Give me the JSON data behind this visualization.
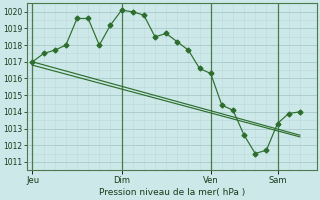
{
  "bg_color": "#cce8e8",
  "grid_color_major": "#aacaca",
  "grid_color_minor": "#bcd8d8",
  "line_color": "#2d6e2d",
  "xlabel": "Pression niveau de la mer( hPa )",
  "ylim": [
    1010.5,
    1020.5
  ],
  "yticks": [
    1011,
    1012,
    1013,
    1014,
    1015,
    1016,
    1017,
    1018,
    1019,
    1020
  ],
  "xtick_labels": [
    "Jeu",
    "Dim",
    "Ven",
    "Sam"
  ],
  "xtick_positions": [
    0,
    8,
    16,
    22
  ],
  "vline_positions": [
    0,
    8,
    16,
    22
  ],
  "series1_x": [
    0,
    1,
    2,
    3,
    4,
    5,
    6,
    7,
    8,
    9,
    10,
    11,
    12,
    13,
    14,
    15,
    16,
    17,
    18,
    19,
    20,
    21,
    22,
    23,
    24
  ],
  "series1_y": [
    1017.0,
    1017.5,
    1017.7,
    1018.0,
    1019.6,
    1019.6,
    1018.0,
    1019.2,
    1020.1,
    1020.0,
    1019.8,
    1018.5,
    1018.7,
    1018.2,
    1017.7,
    1016.6,
    1016.3,
    1014.4,
    1014.1,
    1012.6,
    1011.5,
    1011.7,
    1013.3,
    1013.9,
    1014.0
  ],
  "trend1_x": [
    0,
    24
  ],
  "trend1_y": [
    1017.0,
    1012.6
  ],
  "trend2_x": [
    0,
    24
  ],
  "trend2_y": [
    1016.8,
    1012.5
  ],
  "xlim": [
    -0.5,
    25.5
  ]
}
